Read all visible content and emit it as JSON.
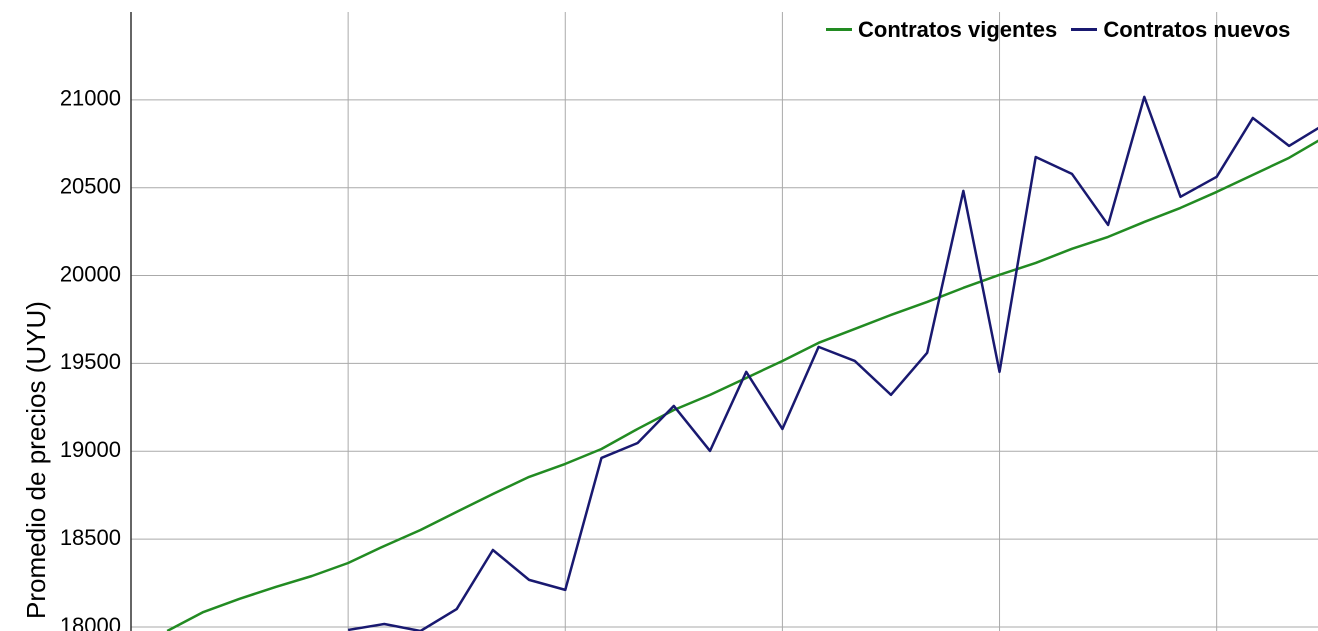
{
  "chart_data": {
    "type": "line",
    "y_label": "Promedio de precios (UYU)",
    "x": [
      0,
      1,
      2,
      3,
      4,
      5,
      6,
      7,
      8,
      9,
      10,
      11,
      12,
      13,
      14,
      15,
      16,
      17,
      18,
      19,
      20,
      21,
      22,
      23,
      24,
      25,
      26,
      27,
      28,
      29,
      30,
      31,
      32,
      33
    ],
    "series": [
      {
        "name": "Contratos vigentes",
        "color": "#228b22",
        "values": [
          null,
          17977,
          18085,
          18160,
          18228,
          18290,
          18364,
          18461,
          18552,
          18655,
          18757,
          18854,
          18928,
          19013,
          19127,
          19235,
          19321,
          19417,
          19514,
          19617,
          19696,
          19776,
          19850,
          19930,
          20004,
          20072,
          20152,
          20220,
          20305,
          20385,
          20476,
          20573,
          20670,
          20790
        ]
      },
      {
        "name": "Contratos nuevos",
        "color": "#191970",
        "values": [
          null,
          null,
          null,
          null,
          null,
          null,
          17983,
          18017,
          17977,
          18102,
          18438,
          18268,
          18211,
          18962,
          19047,
          19258,
          19002,
          19452,
          19127,
          19594,
          19514,
          19321,
          19560,
          20482,
          19452,
          20675,
          20579,
          20288,
          21017,
          20448,
          20562,
          20897,
          20738,
          20863
        ]
      }
    ],
    "xlim": [
      0,
      32.8
    ],
    "xticks": [
      0,
      6,
      12,
      18,
      24,
      30
    ],
    "ylim": [
      17977,
      21500
    ],
    "yticks": [
      18000,
      18500,
      19000,
      19500,
      20000,
      20500,
      21000
    ],
    "grid": true,
    "legend": "top-right"
  }
}
